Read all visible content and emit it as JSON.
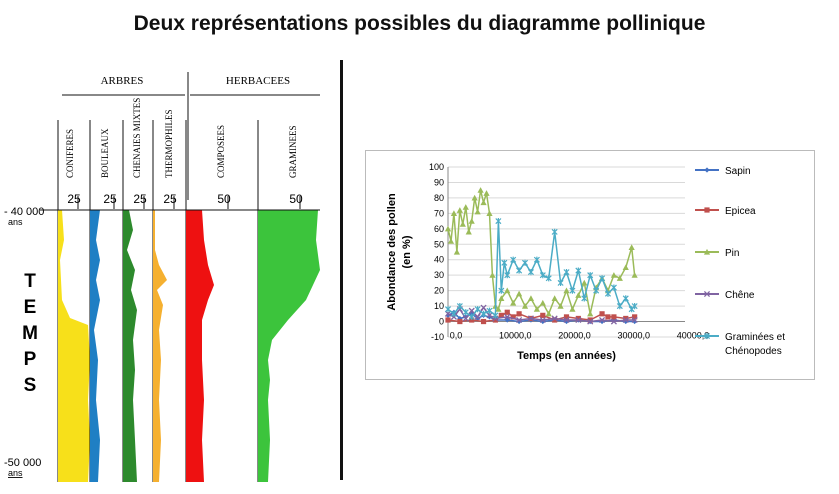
{
  "title": "Deux représentations possibles du diagramme pollinique",
  "pollen_diagram": {
    "groups": [
      {
        "label": "ARBRES"
      },
      {
        "label": "HERBACEES"
      }
    ],
    "columns": [
      {
        "label": "CONIFERES",
        "scale": "25",
        "color": "#f7e01a"
      },
      {
        "label": "BOULEAUX",
        "scale": "25",
        "color": "#1f7fc4"
      },
      {
        "label": "CHENAIES MIXTES",
        "scale": "25",
        "color": "#2d8a2d"
      },
      {
        "label": "THERMOPHILES",
        "scale": "25",
        "color": "#f5b030"
      },
      {
        "label": "COMPOSEES",
        "scale": "50",
        "color": "#ee1111"
      },
      {
        "label": "GRAMINEES",
        "scale": "50",
        "color": "#3cc43c"
      }
    ],
    "top_age": "- 40 000",
    "top_unit": "ans",
    "bottom_age": "-50 000",
    "bottom_unit": "ans",
    "axis_word": [
      "T",
      "E",
      "M",
      "P",
      "S"
    ]
  },
  "chart_data": {
    "type": "line",
    "title": "",
    "xlabel": "Temps (en années)",
    "ylabel": "Abondance des pollen (en %)",
    "xlim": [
      0,
      40000
    ],
    "ylim": [
      -10,
      100
    ],
    "x_ticks": [
      "0,0",
      "10000,0",
      "20000,0",
      "30000,0",
      "40000,0"
    ],
    "y_ticks": [
      "-10",
      "0",
      "10",
      "20",
      "30",
      "40",
      "50",
      "60",
      "70",
      "80",
      "90",
      "100"
    ],
    "legend_position": "right",
    "series": [
      {
        "name": "Sapin",
        "color": "#4472c4",
        "marker": "diamond",
        "x": [
          0,
          1000,
          2000,
          3000,
          4000,
          5000,
          6000,
          7000,
          8000,
          10000,
          12000,
          14000,
          16000,
          18000,
          20000,
          22000,
          24000,
          26000,
          28000,
          30000,
          31500
        ],
        "y": [
          4,
          6,
          2,
          3,
          5,
          2,
          4,
          3,
          1,
          1,
          0,
          1,
          0,
          1,
          0,
          1,
          0,
          0,
          1,
          0,
          0
        ]
      },
      {
        "name": "Epicea",
        "color": "#c0504d",
        "marker": "square",
        "x": [
          0,
          2000,
          4000,
          6000,
          8000,
          9000,
          10000,
          11000,
          12000,
          14000,
          16000,
          18000,
          20000,
          22000,
          24000,
          26000,
          27000,
          28000,
          30000,
          31500
        ],
        "y": [
          1,
          0,
          1,
          0,
          1,
          4,
          6,
          3,
          5,
          2,
          4,
          1,
          3,
          2,
          1,
          5,
          3,
          3,
          2,
          3
        ]
      },
      {
        "name": "Pin",
        "color": "#9bbb59",
        "marker": "triangle",
        "x": [
          0,
          500,
          1000,
          1500,
          2000,
          2500,
          3000,
          3500,
          4000,
          4500,
          5000,
          5500,
          6000,
          6500,
          7000,
          7500,
          8000,
          8500,
          9000,
          10000,
          11000,
          12000,
          13000,
          14000,
          15000,
          16000,
          17000,
          18000,
          19000,
          20000,
          21000,
          22000,
          23000,
          24000,
          25000,
          26000,
          27000,
          28000,
          29000,
          30000,
          31000,
          31500
        ],
        "y": [
          60,
          52,
          70,
          45,
          72,
          63,
          74,
          58,
          65,
          80,
          71,
          85,
          77,
          83,
          70,
          30,
          10,
          8,
          15,
          20,
          12,
          18,
          10,
          15,
          8,
          12,
          5,
          15,
          10,
          20,
          8,
          17,
          25,
          5,
          22,
          28,
          20,
          30,
          28,
          35,
          48,
          30
        ]
      },
      {
        "name": "Chêne",
        "color": "#8064a2",
        "marker": "x",
        "x": [
          0,
          1000,
          2000,
          3000,
          4000,
          5000,
          6000,
          7000,
          8000,
          10000,
          12000,
          14000,
          16000,
          18000,
          20000,
          22000,
          24000,
          26000,
          28000,
          30000,
          31500
        ],
        "y": [
          5,
          3,
          8,
          2,
          7,
          3,
          9,
          4,
          2,
          3,
          1,
          2,
          1,
          2,
          1,
          1,
          0,
          1,
          0,
          1,
          1
        ]
      },
      {
        "name": "Graminées et Chénopodes",
        "color": "#4bacc6",
        "marker": "star",
        "x": [
          0,
          1000,
          2000,
          3000,
          4000,
          5000,
          6000,
          7000,
          8000,
          8500,
          9000,
          9500,
          10000,
          11000,
          12000,
          13000,
          14000,
          15000,
          16000,
          17000,
          18000,
          19000,
          20000,
          21000,
          22000,
          23000,
          24000,
          25000,
          26000,
          27000,
          28000,
          29000,
          30000,
          31000,
          31500
        ],
        "y": [
          8,
          5,
          10,
          6,
          3,
          8,
          5,
          7,
          4,
          65,
          20,
          38,
          30,
          40,
          33,
          38,
          32,
          40,
          30,
          28,
          58,
          25,
          32,
          20,
          33,
          15,
          30,
          20,
          28,
          18,
          22,
          10,
          15,
          8,
          10
        ]
      }
    ]
  }
}
